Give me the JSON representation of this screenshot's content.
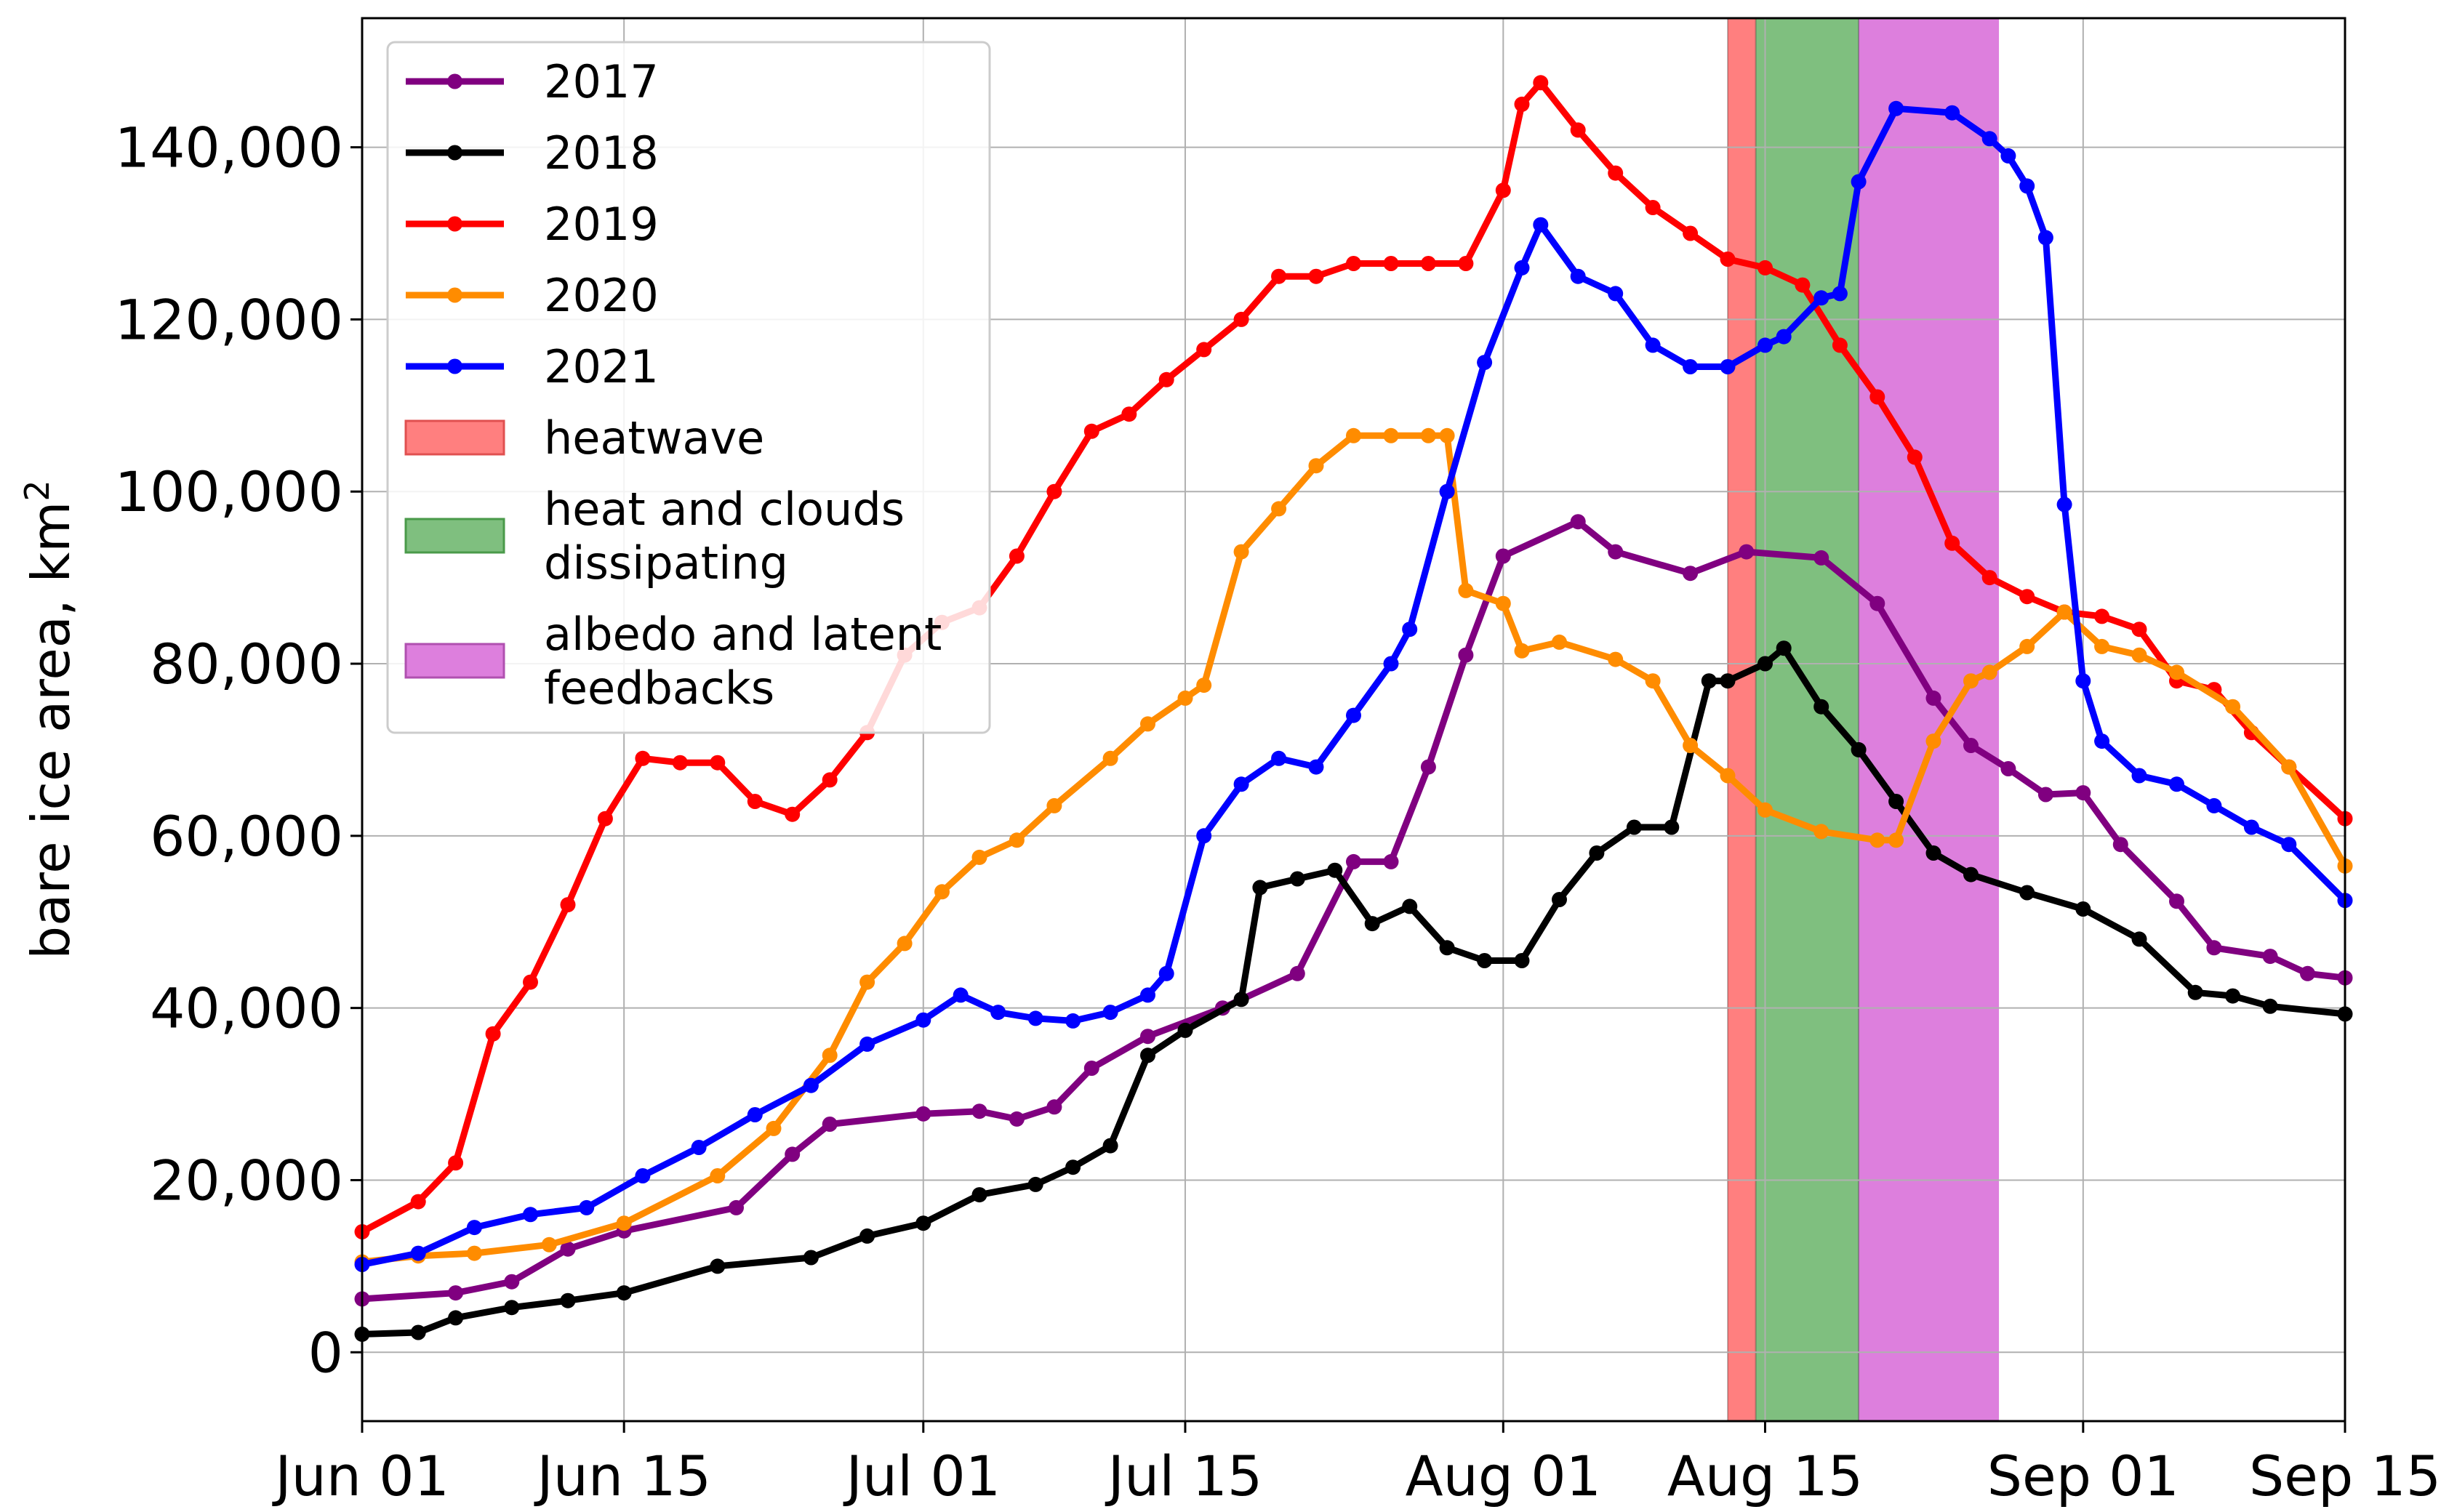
{
  "chart_data": {
    "type": "line",
    "ylabel": "bare ice area, km",
    "ylabel_superscript": "2",
    "xlim": [
      "2021-06-01",
      "2021-09-15"
    ],
    "ylim": [
      -8000,
      155000
    ],
    "grid": true,
    "legend_position": "upper-left",
    "xtick_labels": [
      "Jun 01",
      "Jun 15",
      "Jul 01",
      "Jul 15",
      "Aug 01",
      "Aug 15",
      "Sep 01",
      "Sep 15"
    ],
    "xtick_dates": [
      "2021-06-01",
      "2021-06-15",
      "2021-07-01",
      "2021-07-15",
      "2021-08-01",
      "2021-08-15",
      "2021-09-01",
      "2021-09-15"
    ],
    "ytick_labels": [
      "0",
      "20,000",
      "40,000",
      "60,000",
      "80,000",
      "100,000",
      "120,000",
      "140,000"
    ],
    "ytick_values": [
      0,
      20000,
      40000,
      60000,
      80000,
      100000,
      120000,
      140000
    ],
    "shaded_periods": [
      {
        "name": "heatwave",
        "start": "2021-08-13",
        "end": "2021-08-14.5",
        "color": "#ff7f7f"
      },
      {
        "name": "heat and clouds dissipating",
        "start": "2021-08-14.5",
        "end": "2021-08-20",
        "color": "#7fbf7f"
      },
      {
        "name": "albedo and latent feedbacks",
        "start": "2021-08-20",
        "end": "2021-08-27.5",
        "color": "#dd7fdd"
      }
    ],
    "legend": [
      {
        "kind": "line",
        "name": "2017",
        "color": "#800080"
      },
      {
        "kind": "line",
        "name": "2018",
        "color": "#000000"
      },
      {
        "kind": "line",
        "name": "2019",
        "color": "#ff0000"
      },
      {
        "kind": "line",
        "name": "2020",
        "color": "#ff8c00"
      },
      {
        "kind": "line",
        "name": "2021",
        "color": "#0000ff"
      },
      {
        "kind": "patch",
        "lines": [
          "heatwave"
        ],
        "color": "#ff7f7f",
        "edge": "#e05050"
      },
      {
        "kind": "patch",
        "lines": [
          "heat and clouds",
          "dissipating"
        ],
        "color": "#7fbf7f",
        "edge": "#4a9a4a"
      },
      {
        "kind": "patch",
        "lines": [
          "albedo and latent",
          "feedbacks"
        ],
        "color": "#dd7fdd",
        "edge": "#b050b0"
      }
    ],
    "series": [
      {
        "name": "2017",
        "color": "#800080",
        "x": [
          "06-01",
          "06-06",
          "06-09",
          "06-12",
          "06-15",
          "06-21",
          "06-24",
          "06-26",
          "07-01",
          "07-04",
          "07-06",
          "07-08",
          "07-10",
          "07-13",
          "07-17",
          "07-21",
          "07-24",
          "07-26",
          "07-28",
          "07-30",
          "08-01",
          "08-05",
          "08-07",
          "08-11",
          "08-14",
          "08-18",
          "08-21",
          "08-24",
          "08-26",
          "08-28",
          "08-30",
          "09-01",
          "09-03",
          "09-06",
          "09-08",
          "09-11",
          "09-13",
          "09-15"
        ],
        "values": [
          6200,
          6900,
          8200,
          12000,
          14100,
          16800,
          23000,
          26500,
          27700,
          28000,
          27100,
          28500,
          33000,
          36700,
          40000,
          44000,
          57000,
          57000,
          68000,
          81000,
          92500,
          96500,
          93000,
          90500,
          93000,
          92300,
          87000,
          76000,
          70500,
          67800,
          64800,
          65000,
          59000,
          52400,
          47000,
          46000,
          44000,
          43500
        ]
      },
      {
        "name": "2018",
        "color": "#000000",
        "x": [
          "06-01",
          "06-04",
          "06-06",
          "06-09",
          "06-12",
          "06-15",
          "06-20",
          "06-25",
          "06-28",
          "07-01",
          "07-04",
          "07-07",
          "07-09",
          "07-11",
          "07-13",
          "07-15",
          "07-18",
          "07-19",
          "07-21",
          "07-23",
          "07-25",
          "07-27",
          "07-29",
          "07-31",
          "08-02",
          "08-04",
          "08-06",
          "08-08",
          "08-10",
          "08-12",
          "08-13",
          "08-15",
          "08-16",
          "08-18",
          "08-20",
          "08-22",
          "08-24",
          "08-26",
          "08-29",
          "09-01",
          "09-04",
          "09-07",
          "09-09",
          "09-11",
          "09-15"
        ],
        "values": [
          2100,
          2300,
          4000,
          5200,
          6000,
          6900,
          10000,
          11000,
          13500,
          15000,
          18300,
          19500,
          21500,
          24000,
          34500,
          37400,
          41000,
          54000,
          55000,
          56000,
          49800,
          51800,
          47000,
          45500,
          45500,
          52600,
          58000,
          61000,
          61000,
          78000,
          78000,
          80000,
          81800,
          75000,
          70000,
          64000,
          58000,
          55500,
          53400,
          51500,
          48000,
          41800,
          41400,
          40200,
          39300
        ]
      },
      {
        "name": "2019",
        "color": "#ff0000",
        "x": [
          "06-01",
          "06-04",
          "06-06",
          "06-08",
          "06-10",
          "06-12",
          "06-14",
          "06-16",
          "06-18",
          "06-20",
          "06-22",
          "06-24",
          "06-26",
          "06-28",
          "06-30",
          "07-02",
          "07-04",
          "07-06",
          "07-08",
          "07-10",
          "07-12",
          "07-14",
          "07-16",
          "07-18",
          "07-20",
          "07-22",
          "07-24",
          "07-26",
          "07-28",
          "07-30",
          "08-01",
          "08-02",
          "08-03",
          "08-05",
          "08-07",
          "08-09",
          "08-11",
          "08-13",
          "08-15",
          "08-17",
          "08-19",
          "08-21",
          "08-23",
          "08-25",
          "08-27",
          "08-29",
          "08-31",
          "09-02",
          "09-04",
          "09-06",
          "09-08",
          "09-10",
          "09-12",
          "09-15"
        ],
        "values": [
          14000,
          17500,
          22000,
          37000,
          43000,
          52000,
          62000,
          69000,
          68500,
          68500,
          64000,
          62500,
          66500,
          72000,
          81000,
          84800,
          86500,
          92500,
          100000,
          107000,
          109000,
          113000,
          116500,
          120000,
          125000,
          125000,
          126500,
          126500,
          126500,
          126500,
          135000,
          145000,
          147500,
          142000,
          137000,
          133000,
          130000,
          127000,
          126000,
          124000,
          117000,
          111000,
          104000,
          94000,
          90000,
          87800,
          86000,
          85500,
          84000,
          78000,
          77000,
          72000,
          68000,
          62000
        ]
      },
      {
        "name": "2020",
        "color": "#ff8c00",
        "x": [
          "06-01",
          "06-04",
          "06-07",
          "06-11",
          "06-15",
          "06-20",
          "06-23",
          "06-26",
          "06-28",
          "06-30",
          "07-02",
          "07-04",
          "07-06",
          "07-08",
          "07-11",
          "07-13",
          "07-15",
          "07-16",
          "07-18",
          "07-20",
          "07-22",
          "07-24",
          "07-26",
          "07-28",
          "07-29",
          "07-30",
          "08-01",
          "08-02",
          "08-04",
          "08-07",
          "08-09",
          "08-11",
          "08-13",
          "08-15",
          "08-18",
          "08-21",
          "08-22",
          "08-24",
          "08-26",
          "08-27",
          "08-29",
          "08-31",
          "09-02",
          "09-04",
          "09-06",
          "09-09",
          "09-12",
          "09-15"
        ],
        "values": [
          10500,
          11200,
          11500,
          12500,
          15000,
          20500,
          26000,
          34500,
          43000,
          47500,
          53500,
          57500,
          59500,
          63500,
          69000,
          73000,
          76000,
          77500,
          93000,
          98000,
          103000,
          106500,
          106500,
          106500,
          106500,
          88500,
          87000,
          81500,
          82500,
          80500,
          78000,
          70500,
          67000,
          63000,
          60500,
          59500,
          59500,
          71000,
          78000,
          79000,
          82000,
          86000,
          82000,
          81000,
          79000,
          75000,
          68000,
          56500
        ]
      },
      {
        "name": "2021",
        "color": "#0000ff",
        "x": [
          "06-01",
          "06-04",
          "06-07",
          "06-10",
          "06-13",
          "06-16",
          "06-19",
          "06-22",
          "06-25",
          "06-28",
          "07-01",
          "07-03",
          "07-05",
          "07-07",
          "07-09",
          "07-11",
          "07-13",
          "07-14",
          "07-16",
          "07-18",
          "07-20",
          "07-22",
          "07-24",
          "07-26",
          "07-27",
          "07-29",
          "07-31",
          "08-02",
          "08-03",
          "08-05",
          "08-07",
          "08-09",
          "08-11",
          "08-13",
          "08-15",
          "08-16",
          "08-18",
          "08-19",
          "08-20",
          "08-22",
          "08-25",
          "08-27",
          "08-28",
          "08-29",
          "08-30",
          "08-31",
          "09-01",
          "09-02",
          "09-04",
          "09-06",
          "09-08",
          "09-10",
          "09-12",
          "09-15"
        ],
        "values": [
          10200,
          11500,
          14500,
          16000,
          16800,
          20500,
          23800,
          27600,
          31000,
          35800,
          38600,
          41500,
          39500,
          38800,
          38500,
          39500,
          41500,
          44000,
          60000,
          66000,
          69000,
          68000,
          74000,
          80000,
          84000,
          100000,
          115000,
          126000,
          131000,
          125000,
          123000,
          117000,
          114500,
          114500,
          117000,
          118000,
          122500,
          123000,
          136000,
          144500,
          144000,
          141000,
          139000,
          135500,
          129500,
          98500,
          78000,
          71000,
          67000,
          66000,
          63500,
          61000,
          59000,
          52500
        ]
      }
    ]
  }
}
